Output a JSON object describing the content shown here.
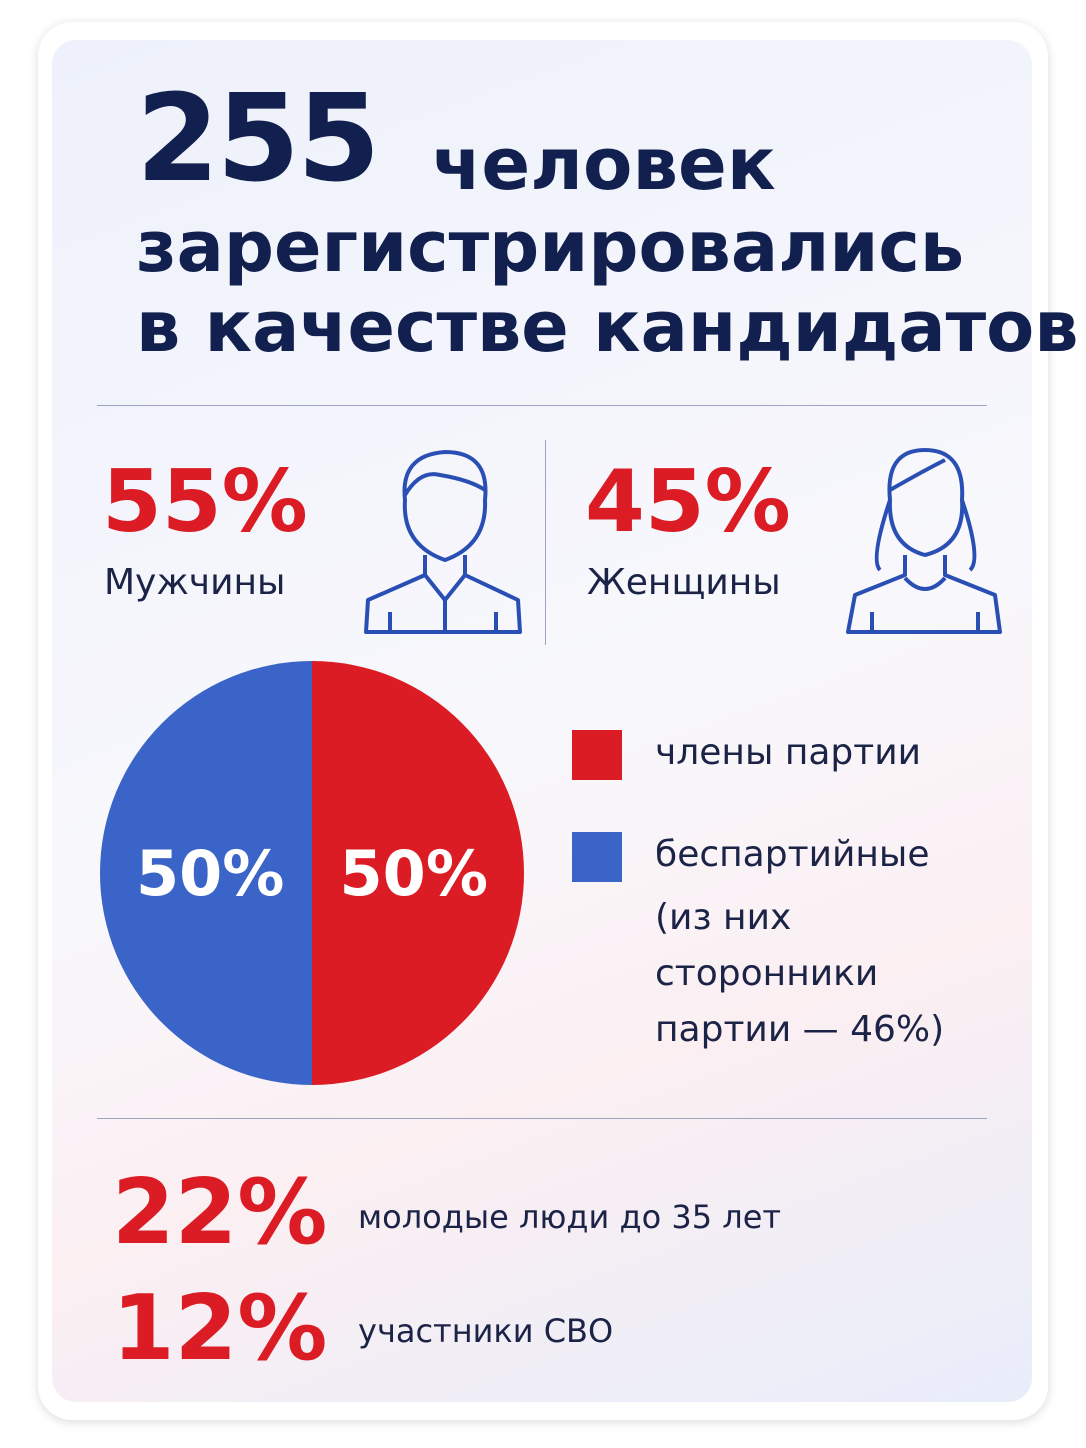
{
  "header": {
    "number": "255",
    "lines": [
      "человек",
      "зарегистрировались",
      "в качестве кандидатов"
    ]
  },
  "gender": [
    {
      "percent": "55%",
      "label": "Мужчины"
    },
    {
      "percent": "45%",
      "label": "Женщины"
    }
  ],
  "chart_data": {
    "type": "pie",
    "categories": [
      "члены партии",
      "беспартийные"
    ],
    "note": "(из них сторонники партии — 46%)",
    "values": [
      50,
      50
    ],
    "value_labels": [
      "50%",
      "50%"
    ],
    "colors": [
      "#dc1c24",
      "#3a64c8"
    ]
  },
  "stats": [
    {
      "percent": "22%",
      "label": "молодые люди до 35 лет"
    },
    {
      "percent": "12%",
      "label": "участники СВО"
    }
  ]
}
